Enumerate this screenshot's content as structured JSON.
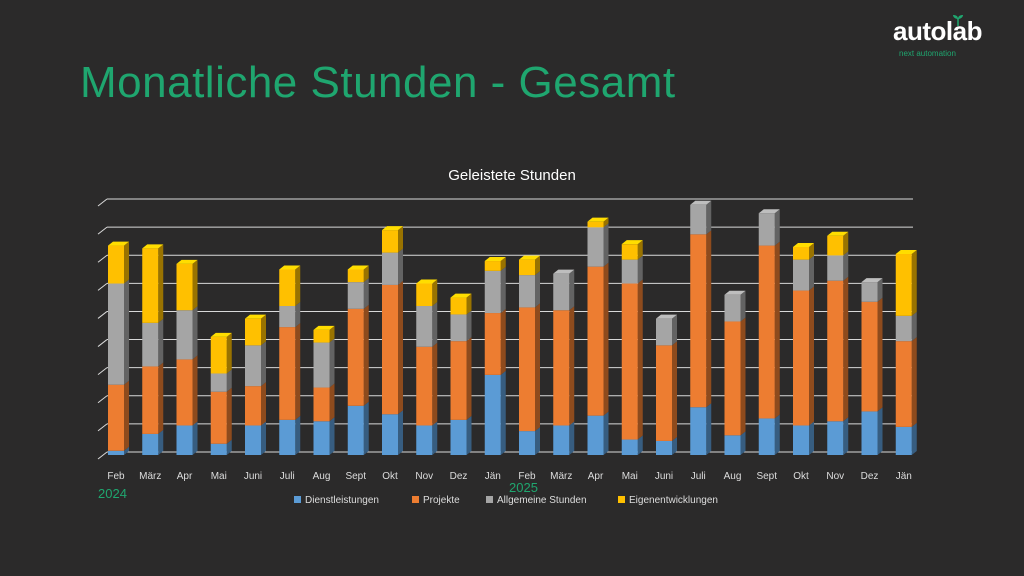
{
  "slide": {
    "title": "Monatliche Stunden - Gesamt"
  },
  "logo": {
    "name": "autolab",
    "tagline": "next automation"
  },
  "colors": {
    "background": "#2b2a2a",
    "accent": "#1fa66f",
    "gridline": "#d9d9d9",
    "dienstleistungen": "#5b9bd5",
    "projekte": "#ed7d31",
    "allgemeine": "#a5a5a5",
    "eigenentwicklungen": "#ffc000"
  },
  "chart_data": {
    "type": "bar",
    "stacked": true,
    "style": "3d-stacked-column",
    "title": "Geleistete Stunden",
    "xlabel": "",
    "ylabel": "",
    "ylim": [
      0,
      9
    ],
    "y_tick_labels_visible": false,
    "grid": true,
    "legend_position": "bottom",
    "categories": [
      "Feb",
      "März",
      "Apr",
      "Mai",
      "Juni",
      "Juli",
      "Aug",
      "Sept",
      "Okt",
      "Nov",
      "Dez",
      "Jän",
      "Feb",
      "März",
      "Apr",
      "Mai",
      "Juni",
      "Juli",
      "Aug",
      "Sept",
      "Okt",
      "Nov",
      "Dez",
      "Jän"
    ],
    "year_labels": [
      {
        "label": "2024",
        "start_index": 0
      },
      {
        "label": "2025",
        "start_index": 12
      }
    ],
    "series": [
      {
        "name": "Dienstleistungen",
        "color": "#5b9bd5",
        "values": [
          0.15,
          0.75,
          1.05,
          0.4,
          1.05,
          1.25,
          1.2,
          1.75,
          1.45,
          1.05,
          1.25,
          2.85,
          0.85,
          1.05,
          1.4,
          0.55,
          0.5,
          1.7,
          0.7,
          1.3,
          1.05,
          1.2,
          1.55,
          1.0
        ]
      },
      {
        "name": "Projekte",
        "color": "#ed7d31",
        "values": [
          2.35,
          2.4,
          2.35,
          1.85,
          1.4,
          3.3,
          1.2,
          3.45,
          4.6,
          2.8,
          2.8,
          2.2,
          4.4,
          4.1,
          5.3,
          5.55,
          3.4,
          6.15,
          4.05,
          6.15,
          4.8,
          5.0,
          3.9,
          3.05
        ]
      },
      {
        "name": "Allgemeine Stunden",
        "color": "#a5a5a5",
        "values": [
          3.6,
          1.55,
          1.75,
          0.65,
          1.45,
          0.75,
          1.6,
          0.95,
          1.15,
          1.45,
          0.95,
          1.5,
          1.15,
          1.3,
          1.4,
          0.85,
          0.95,
          1.05,
          0.95,
          1.15,
          1.1,
          0.9,
          0.7,
          0.9
        ]
      },
      {
        "name": "Eigenentwicklungen",
        "color": "#ffc000",
        "values": [
          1.35,
          2.65,
          1.65,
          1.3,
          0.95,
          1.3,
          0.45,
          0.45,
          0.8,
          0.8,
          0.6,
          0.35,
          0.55,
          0.0,
          0.2,
          0.55,
          0.0,
          0.0,
          0.0,
          0.0,
          0.45,
          0.7,
          0.0,
          2.2
        ]
      }
    ]
  }
}
